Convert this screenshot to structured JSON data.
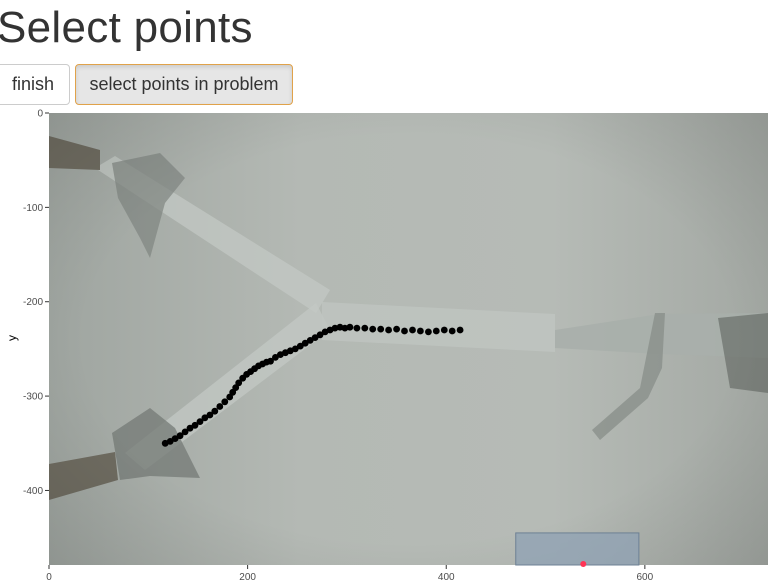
{
  "page": {
    "title": "Select points"
  },
  "toolbar": {
    "finish_label": "finish",
    "select_label": "select points in problem"
  },
  "colors": {
    "button_active_border": "#e0a24a",
    "track_points": "#000000",
    "brush_fill": "#8fa2b4",
    "highlight_point": "#ff3355"
  },
  "chart_data": {
    "type": "scatter",
    "title": "",
    "xlabel": "",
    "ylabel": "y",
    "xlim": [
      0,
      724
    ],
    "ylim": [
      -479,
      0
    ],
    "x_ticks": [
      0,
      200,
      400,
      600
    ],
    "y_ticks": [
      0,
      -100,
      -200,
      -300,
      -400
    ],
    "grid": false,
    "background": "video-frame-image",
    "series": [
      {
        "values": [
          [
            117,
            -350
          ],
          [
            122,
            -348
          ],
          [
            127,
            -345
          ],
          [
            132,
            -342
          ],
          [
            137,
            -338
          ],
          [
            142,
            -334
          ],
          [
            147,
            -331
          ],
          [
            152,
            -327
          ],
          [
            157,
            -323
          ],
          [
            162,
            -320
          ],
          [
            167,
            -316
          ],
          [
            172,
            -311
          ],
          [
            177,
            -306
          ],
          [
            182,
            -301
          ],
          [
            185,
            -296
          ],
          [
            188,
            -291
          ],
          [
            191,
            -286
          ],
          [
            195,
            -281
          ],
          [
            199,
            -277
          ],
          [
            203,
            -274
          ],
          [
            207,
            -271
          ],
          [
            211,
            -268
          ],
          [
            215,
            -266
          ],
          [
            219,
            -264
          ],
          [
            223,
            -263
          ],
          [
            228,
            -259
          ],
          [
            233,
            -256
          ],
          [
            238,
            -254
          ],
          [
            243,
            -252
          ],
          [
            248,
            -250
          ],
          [
            253,
            -247
          ],
          [
            258,
            -244
          ],
          [
            263,
            -241
          ],
          [
            268,
            -238
          ],
          [
            273,
            -235
          ],
          [
            278,
            -232
          ],
          [
            283,
            -230
          ],
          [
            288,
            -228
          ],
          [
            293,
            -227
          ],
          [
            298,
            -228
          ],
          [
            303,
            -227
          ],
          [
            310,
            -228
          ],
          [
            318,
            -228
          ],
          [
            326,
            -229
          ],
          [
            334,
            -229
          ],
          [
            342,
            -230
          ],
          [
            350,
            -229
          ],
          [
            358,
            -231
          ],
          [
            366,
            -230
          ],
          [
            374,
            -231
          ],
          [
            382,
            -232
          ],
          [
            390,
            -231
          ],
          [
            398,
            -230
          ],
          [
            406,
            -231
          ],
          [
            414,
            -230
          ]
        ]
      }
    ],
    "brush_selection": {
      "x": [
        470,
        594
      ],
      "y": [
        -479,
        -445
      ]
    },
    "highlight_point": [
      538,
      -478
    ]
  }
}
